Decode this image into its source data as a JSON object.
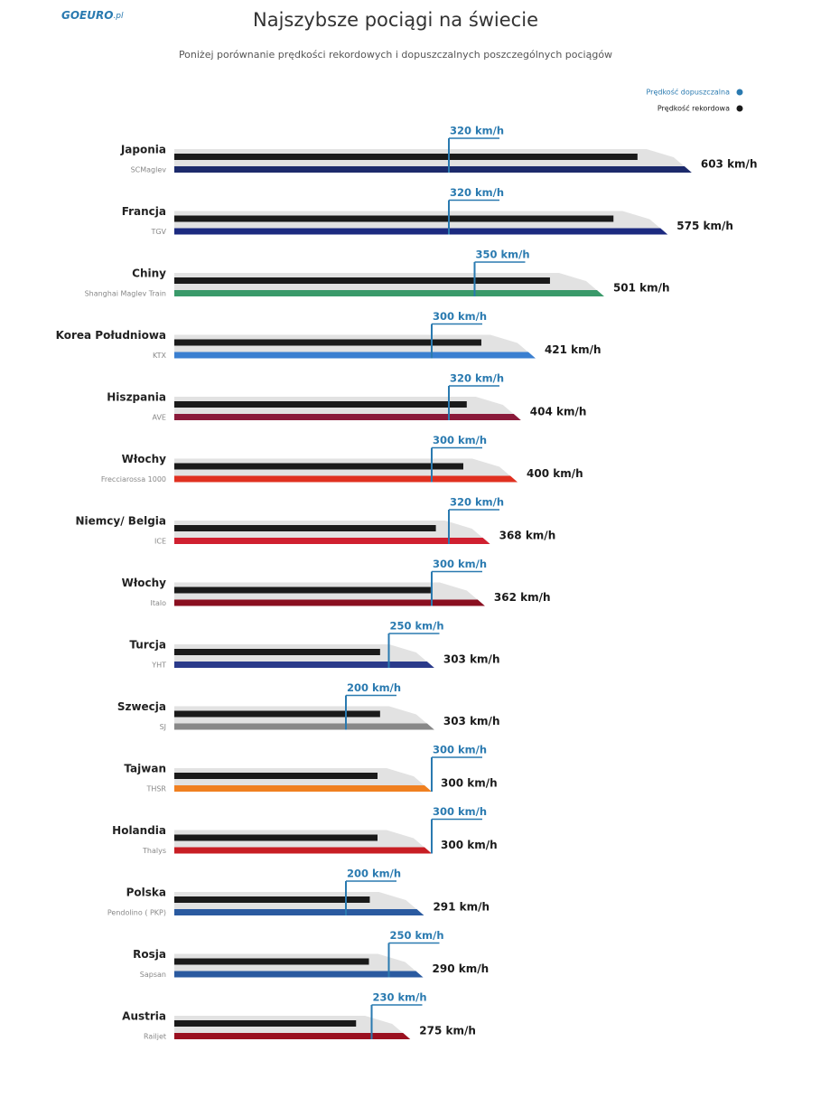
{
  "logo": {
    "brand": "GOEURO",
    "suffix": ".pl"
  },
  "chart_data": {
    "type": "train-bar",
    "title": "Najszybsze pociągi na świecie",
    "subtitle": "Poniżej porównanie prędkości rekordowych i dopuszczalnych poszczególnych pociągów",
    "categories": [
      "Japonia",
      "Francja",
      "Chiny",
      "Korea Południowa",
      "Hiszpania",
      "Włochy",
      "Niemcy/ Belgia",
      "Włochy",
      "Turcja",
      "Szwecja",
      "Tajwan",
      "Holandia",
      "Polska",
      "Rosja",
      "Austria"
    ],
    "train_names": [
      "SCMaglev",
      "TGV",
      "Shanghai Maglev Train",
      "KTX",
      "AVE",
      "Frecciarossa 1000",
      "ICE",
      "Italo",
      "YHT",
      "SJ",
      "THSR",
      "Thalys",
      "Pendolino ( PKP)",
      "Sapsan",
      "Railjet"
    ],
    "train_colors": [
      "#1c2a6b",
      "#1c2a80",
      "#3a9a6a",
      "#3a7fd0",
      "#8a1a3a",
      "#e03020",
      "#d02030",
      "#8a0f20",
      "#2a3a8a",
      "#888888",
      "#f08020",
      "#c81e24",
      "#2a5aa0",
      "#2a5aa0",
      "#9a1020"
    ],
    "series": [
      {
        "name": "Prędkość dopuszczalna",
        "color": "#2a7ab0",
        "values": [
          320,
          320,
          350,
          300,
          320,
          300,
          320,
          300,
          250,
          200,
          300,
          300,
          200,
          250,
          230
        ],
        "value_labels": [
          "320 km/h",
          "320 km/h",
          "350 km/h",
          "300 km/h",
          "320 km/h",
          "300 km/h",
          "320 km/h",
          "300 km/h",
          "250 km/h",
          "200 km/h",
          "300 km/h",
          "300 km/h",
          "200 km/h",
          "250 km/h",
          "230 km/h"
        ]
      },
      {
        "name": "Prędkość rekordowa",
        "color": "#1a1a1a",
        "values": [
          603,
          575,
          501,
          421,
          404,
          400,
          368,
          362,
          303,
          303,
          300,
          300,
          291,
          290,
          275
        ],
        "value_labels": [
          "603 km/h",
          "575 km/h",
          "501 km/h",
          "421 km/h",
          "404 km/h",
          "400 km/h",
          "368 km/h",
          "362 km/h",
          "303 km/h",
          "303 km/h",
          "300 km/h",
          "300 km/h",
          "291 km/h",
          "290 km/h",
          "275 km/h"
        ]
      }
    ]
  }
}
